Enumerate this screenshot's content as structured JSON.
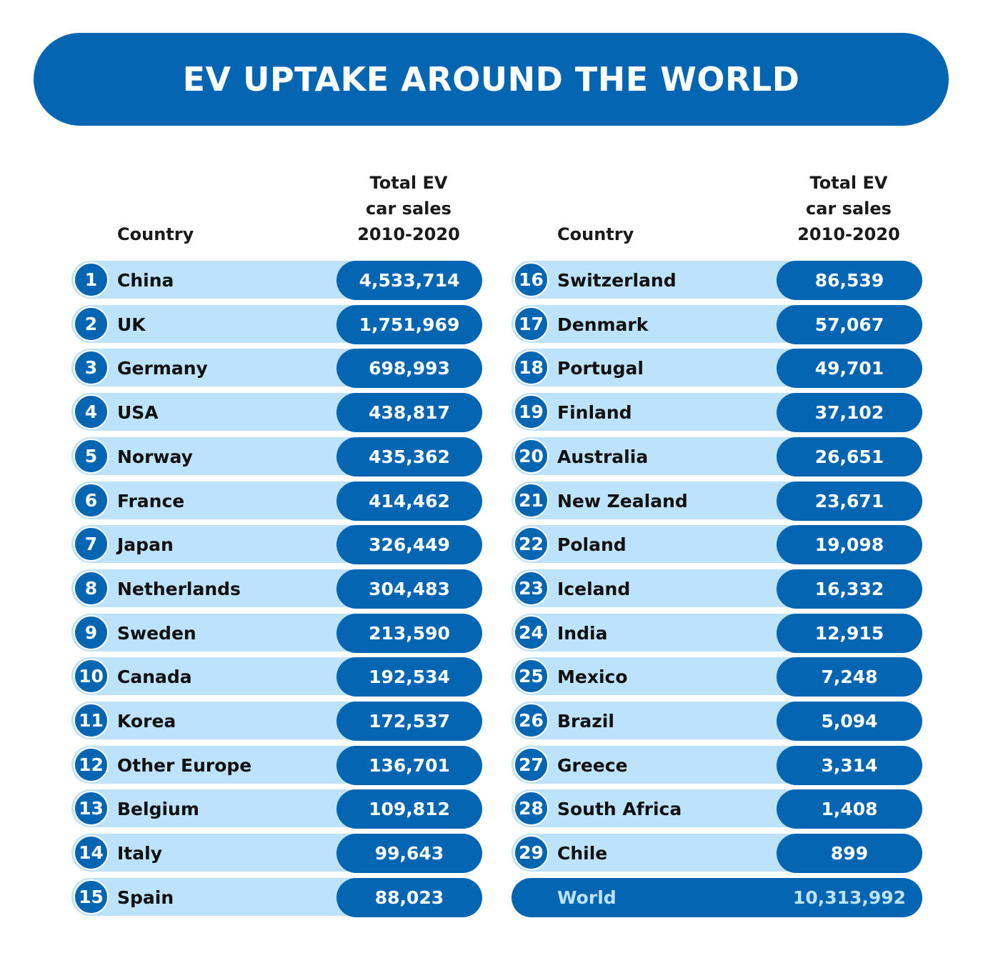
{
  "title": "EV UPTAKE AROUND THE WORLD",
  "headers": {
    "country": "Country",
    "sales_line1": "Total EV",
    "sales_line2": "car sales",
    "sales_line3": "2010-2020"
  },
  "chart_data": {
    "type": "table",
    "title": "EV UPTAKE AROUND THE WORLD",
    "columns": [
      "Country",
      "Total EV car sales 2010-2020"
    ],
    "rows": [
      {
        "rank": "1",
        "country": "China",
        "sales": "4,533,714"
      },
      {
        "rank": "2",
        "country": "UK",
        "sales": "1,751,969"
      },
      {
        "rank": "3",
        "country": "Germany",
        "sales": "698,993"
      },
      {
        "rank": "4",
        "country": "USA",
        "sales": "438,817"
      },
      {
        "rank": "5",
        "country": "Norway",
        "sales": "435,362"
      },
      {
        "rank": "6",
        "country": "France",
        "sales": "414,462"
      },
      {
        "rank": "7",
        "country": "Japan",
        "sales": "326,449"
      },
      {
        "rank": "8",
        "country": "Netherlands",
        "sales": "304,483"
      },
      {
        "rank": "9",
        "country": "Sweden",
        "sales": "213,590"
      },
      {
        "rank": "10",
        "country": "Canada",
        "sales": "192,534"
      },
      {
        "rank": "11",
        "country": "Korea",
        "sales": "172,537"
      },
      {
        "rank": "12",
        "country": "Other Europe",
        "sales": "136,701"
      },
      {
        "rank": "13",
        "country": "Belgium",
        "sales": "109,812"
      },
      {
        "rank": "14",
        "country": "Italy",
        "sales": "99,643"
      },
      {
        "rank": "15",
        "country": "Spain",
        "sales": "88,023"
      },
      {
        "rank": "16",
        "country": "Switzerland",
        "sales": "86,539"
      },
      {
        "rank": "17",
        "country": "Denmark",
        "sales": "57,067"
      },
      {
        "rank": "18",
        "country": "Portugal",
        "sales": "49,701"
      },
      {
        "rank": "19",
        "country": "Finland",
        "sales": "37,102"
      },
      {
        "rank": "20",
        "country": "Australia",
        "sales": "26,651"
      },
      {
        "rank": "21",
        "country": "New Zealand",
        "sales": "23,671"
      },
      {
        "rank": "22",
        "country": "Poland",
        "sales": "19,098"
      },
      {
        "rank": "23",
        "country": "Iceland",
        "sales": "16,332"
      },
      {
        "rank": "24",
        "country": "India",
        "sales": "12,915"
      },
      {
        "rank": "25",
        "country": "Mexico",
        "sales": "7,248"
      },
      {
        "rank": "26",
        "country": "Brazil",
        "sales": "5,094"
      },
      {
        "rank": "27",
        "country": "Greece",
        "sales": "3,314"
      },
      {
        "rank": "28",
        "country": "South Africa",
        "sales": "1,408"
      },
      {
        "rank": "29",
        "country": "Chile",
        "sales": "899"
      }
    ],
    "total": {
      "country": "World",
      "sales": "10,313,992"
    }
  },
  "colors": {
    "primary": "#0466b3",
    "row_background": "#bde2fb",
    "text": "#111111",
    "white": "#ffffff"
  }
}
